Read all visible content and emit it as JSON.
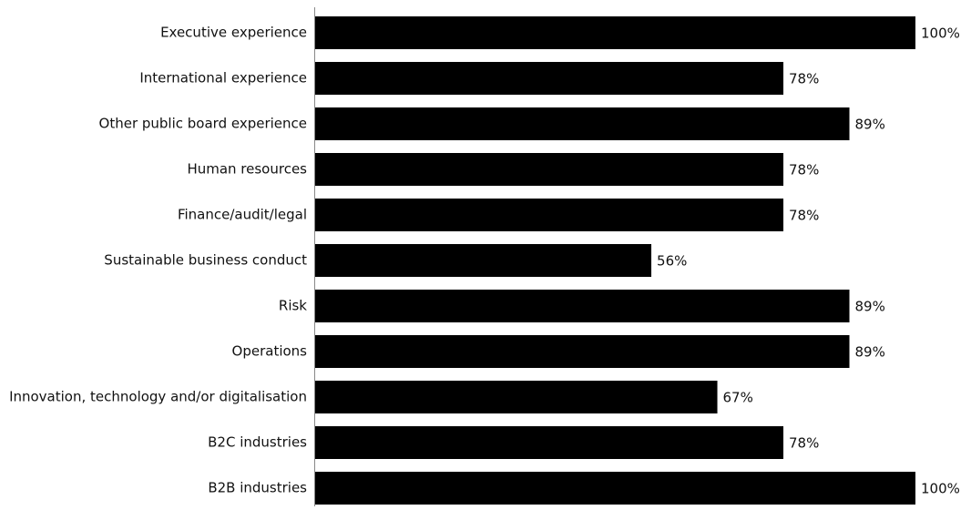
{
  "chart_data": {
    "type": "bar",
    "orientation": "horizontal",
    "categories": [
      "Executive experience",
      "International experience",
      "Other public board experience",
      "Human resources",
      "Finance/audit/legal",
      "Sustainable business conduct",
      "Risk",
      "Operations",
      "Innovation, technology and/or digitalisation",
      "B2C industries",
      "B2B industries"
    ],
    "values": [
      100,
      78,
      89,
      78,
      78,
      56,
      89,
      89,
      67,
      78,
      100
    ],
    "value_labels": [
      "100%",
      "78%",
      "89%",
      "78%",
      "78%",
      "56%",
      "89%",
      "89%",
      "67%",
      "78%",
      "100%"
    ],
    "xlim": [
      0,
      100
    ],
    "grid": false,
    "legend": "none",
    "bar_color": "#000000"
  }
}
